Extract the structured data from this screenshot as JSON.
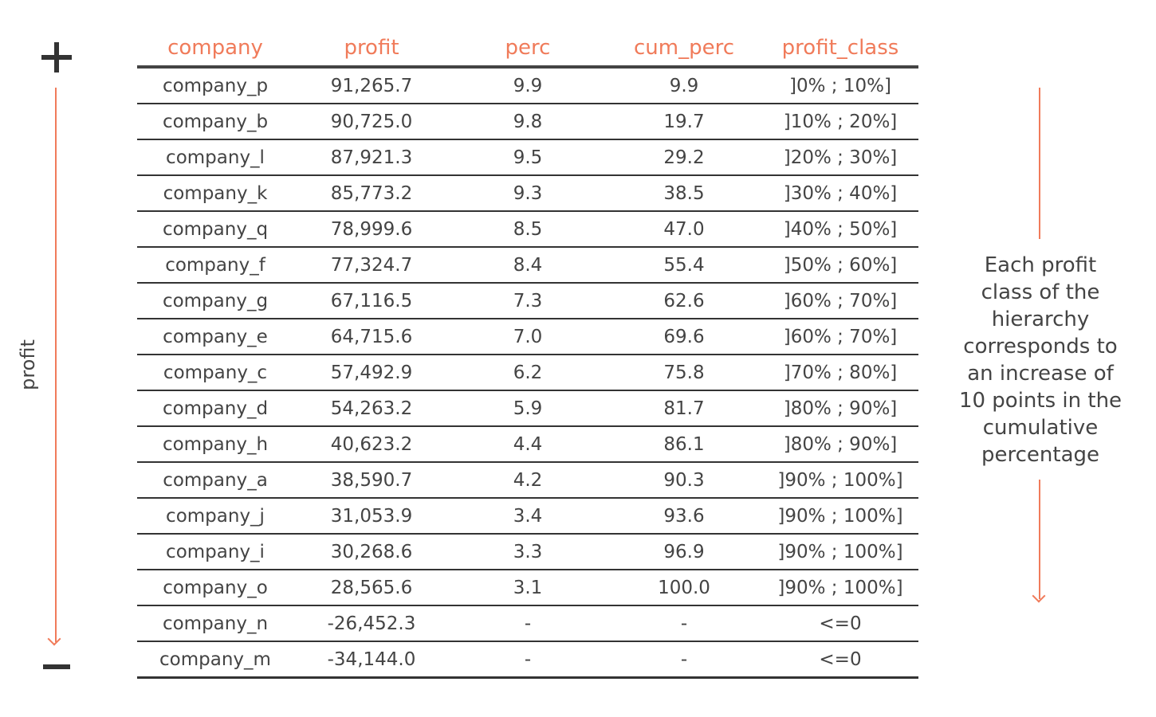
{
  "axis": {
    "label": "profit",
    "top_symbol": "+",
    "bottom_symbol": "−"
  },
  "table": {
    "headers": [
      "company",
      "profit",
      "perc",
      "cum_perc",
      "profit_class"
    ],
    "rows": [
      [
        "company_p",
        "91,265.7",
        "9.9",
        "9.9",
        "]0% ; 10%]"
      ],
      [
        "company_b",
        "90,725.0",
        "9.8",
        "19.7",
        "]10% ; 20%]"
      ],
      [
        "company_l",
        "87,921.3",
        "9.5",
        "29.2",
        "]20% ; 30%]"
      ],
      [
        "company_k",
        "85,773.2",
        "9.3",
        "38.5",
        "]30% ; 40%]"
      ],
      [
        "company_q",
        "78,999.6",
        "8.5",
        "47.0",
        "]40% ; 50%]"
      ],
      [
        "company_f",
        "77,324.7",
        "8.4",
        "55.4",
        "]50% ; 60%]"
      ],
      [
        "company_g",
        "67,116.5",
        "7.3",
        "62.6",
        "]60% ; 70%]"
      ],
      [
        "company_e",
        "64,715.6",
        "7.0",
        "69.6",
        "]60% ; 70%]"
      ],
      [
        "company_c",
        "57,492.9",
        "6.2",
        "75.8",
        "]70% ; 80%]"
      ],
      [
        "company_d",
        "54,263.2",
        "5.9",
        "81.7",
        "]80% ; 90%]"
      ],
      [
        "company_h",
        "40,623.2",
        "4.4",
        "86.1",
        "]80% ; 90%]"
      ],
      [
        "company_a",
        "38,590.7",
        "4.2",
        "90.3",
        "]90% ; 100%]"
      ],
      [
        "company_j",
        "31,053.9",
        "3.4",
        "93.6",
        "]90% ; 100%]"
      ],
      [
        "company_i",
        "30,268.6",
        "3.3",
        "96.9",
        "]90% ; 100%]"
      ],
      [
        "company_o",
        "28,565.6",
        "3.1",
        "100.0",
        "]90% ; 100%]"
      ],
      [
        "company_n",
        "-26,452.3",
        "-",
        "-",
        "<=0"
      ],
      [
        "company_m",
        "-34,144.0",
        "-",
        "-",
        "<=0"
      ]
    ]
  },
  "annotation": {
    "text": "Each profit class of the hierarchy corresponds to an increase of 10 points in the cumulative percentage"
  },
  "colors": {
    "accent": "#f07b5a",
    "text": "#444444",
    "rule": "#333333"
  }
}
